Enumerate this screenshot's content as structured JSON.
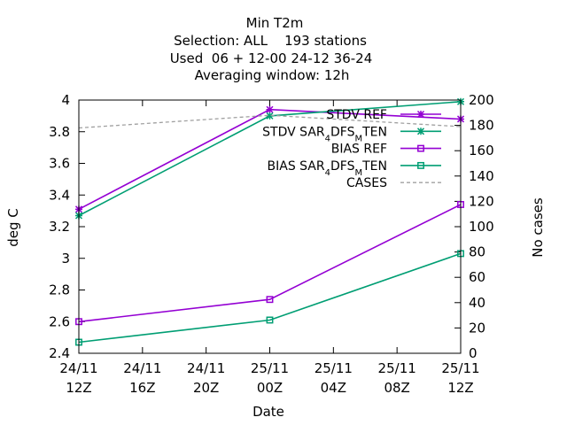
{
  "chart_data": {
    "type": "line",
    "title_lines": [
      "Min T2m",
      "Selection: ALL    193 stations",
      "Used  06 + 12-00 24-12 36-24",
      "Averaging window: 12h"
    ],
    "xlabel": "Date",
    "ylabel": "deg C",
    "y2label": "No cases",
    "x_ticks": [
      {
        "pos": 0,
        "line1": "24/11",
        "line2": "12Z"
      },
      {
        "pos": 4,
        "line1": "24/11",
        "line2": "16Z"
      },
      {
        "pos": 8,
        "line1": "24/11",
        "line2": "20Z"
      },
      {
        "pos": 12,
        "line1": "25/11",
        "line2": "00Z"
      },
      {
        "pos": 16,
        "line1": "25/11",
        "line2": "04Z"
      },
      {
        "pos": 20,
        "line1": "25/11",
        "line2": "08Z"
      },
      {
        "pos": 24,
        "line1": "25/11",
        "line2": "12Z"
      }
    ],
    "x_unit": "hours since 24/11 12Z",
    "xlim": [
      0,
      24
    ],
    "ylim": [
      2.4,
      4.0
    ],
    "y_ticks": [
      "2.4",
      "2.6",
      "2.8",
      "3",
      "3.2",
      "3.4",
      "3.6",
      "3.8",
      "4"
    ],
    "y2lim": [
      0,
      200
    ],
    "y2_ticks": [
      "0",
      "20",
      "40",
      "60",
      "80",
      "100",
      "120",
      "140",
      "160",
      "180",
      "200"
    ],
    "legend_position": "top-right",
    "series": [
      {
        "name": "STDV REF",
        "legend_main": "STDV REF",
        "legend_parts": [],
        "axis": "y",
        "color": "#9400d3",
        "marker": "star",
        "x": [
          0,
          12,
          24
        ],
        "values": [
          3.31,
          3.94,
          3.88
        ]
      },
      {
        "name": "STDV SAR4DFSMTEN",
        "legend_main": "STDV SAR",
        "legend_parts": [
          {
            "t": "4",
            "s": "sub"
          },
          {
            "t": "D",
            "s": "n"
          },
          {
            "t": "FS",
            "s": "n"
          },
          {
            "t": "M",
            "s": "sub"
          },
          {
            "t": "TEN",
            "s": "n"
          }
        ],
        "axis": "y",
        "color": "#009e73",
        "marker": "star",
        "x": [
          0,
          12,
          24
        ],
        "values": [
          3.27,
          3.9,
          3.99
        ]
      },
      {
        "name": "BIAS REF",
        "legend_main": "BIAS REF",
        "legend_parts": [],
        "axis": "y",
        "color": "#9400d3",
        "marker": "square",
        "x": [
          0,
          12,
          24
        ],
        "values": [
          2.6,
          2.74,
          3.34
        ]
      },
      {
        "name": "BIAS SAR4DFSMTEN",
        "legend_main": "BIAS SAR",
        "legend_parts": [
          {
            "t": "4",
            "s": "sub"
          },
          {
            "t": "D",
            "s": "n"
          },
          {
            "t": "FS",
            "s": "n"
          },
          {
            "t": "M",
            "s": "sub"
          },
          {
            "t": "TEN",
            "s": "n"
          }
        ],
        "axis": "y",
        "color": "#009e73",
        "marker": "square",
        "x": [
          0,
          12,
          24
        ],
        "values": [
          2.47,
          2.61,
          3.03
        ]
      },
      {
        "name": "CASES",
        "legend_main": "CASES",
        "legend_parts": [],
        "axis": "y2",
        "color": "#a0a0a0",
        "marker": "none",
        "dashed": true,
        "x": [
          0,
          12,
          24
        ],
        "values": [
          178,
          188,
          179
        ]
      }
    ]
  }
}
